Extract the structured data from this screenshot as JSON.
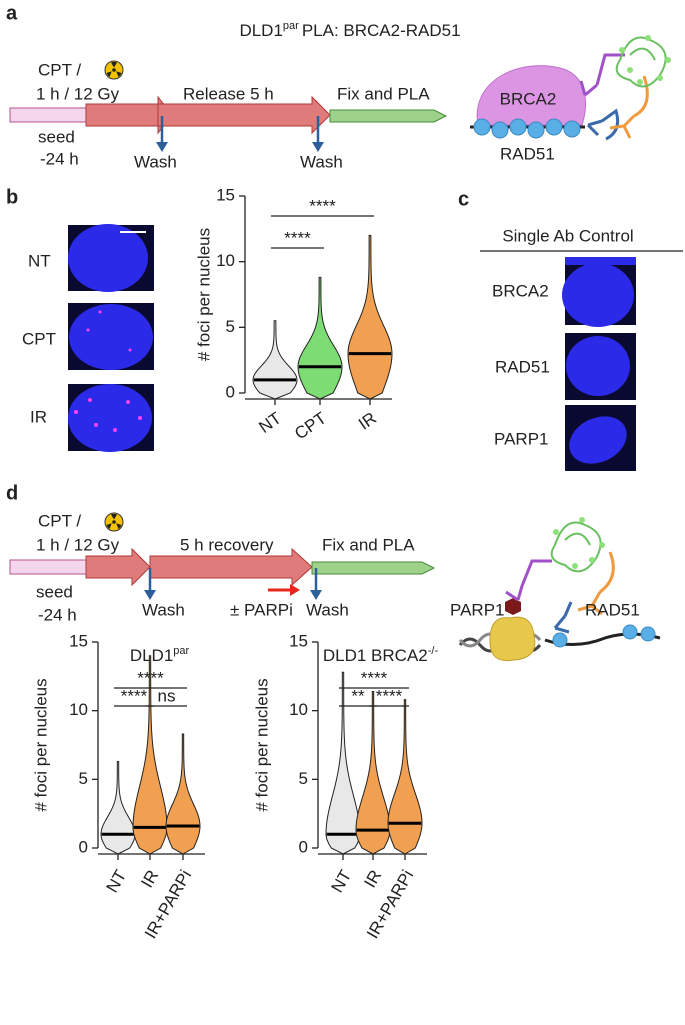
{
  "panel_labels": [
    "a",
    "b",
    "c",
    "d"
  ],
  "panel_a": {
    "title": {
      "text": "DLD1",
      "sup": "par",
      "rest": "PLA: BRCA2-RAD51"
    },
    "treatment": "CPT /",
    "dose": "1 h / 12 Gy",
    "release": "Release 5 h",
    "fix": "Fix and PLA",
    "seed": "seed",
    "seed_time": "-24 h",
    "wash": [
      "Wash",
      "Wash"
    ],
    "schematic": [
      "BRCA2",
      "RAD51"
    ]
  },
  "panel_b": {
    "images": [
      "NT",
      "CPT",
      "IR"
    ]
  },
  "panel_c": {
    "title": "Single Ab Control",
    "images": [
      "BRCA2",
      "RAD51",
      "PARP1"
    ]
  },
  "panel_d": {
    "treatment": "CPT /",
    "dose": "1 h / 12 Gy",
    "recovery": "5 h recovery",
    "fix": "Fix and PLA",
    "seed": "seed",
    "seed_time": "-24 h",
    "wash": [
      "Wash",
      "Wash"
    ],
    "inhibitor": "± PARPi",
    "schematic": [
      "PARP1",
      "RAD51"
    ]
  },
  "chart_data": [
    {
      "type": "violin",
      "ylabel": "# foci per nucleus",
      "categories": [
        "NT",
        "CPT",
        "IR"
      ],
      "values": [
        1,
        2,
        3
      ],
      "maxima": [
        5.5,
        8.8,
        12
      ],
      "colors": [
        "#e8e8e8",
        "#7ddc74",
        "#f0a050"
      ],
      "ylim": [
        0,
        15
      ],
      "yticks": [
        0,
        5,
        10,
        15
      ],
      "comparisons": [
        {
          "label": "****",
          "pair": [
            0,
            2
          ]
        },
        {
          "label": "****",
          "pair": [
            0,
            1
          ]
        }
      ]
    },
    {
      "type": "violin",
      "title": {
        "text": "DLD1",
        "sup": "par"
      },
      "ylabel": "# foci per nucleus",
      "categories": [
        "NT",
        "IR",
        "IR+PARPi"
      ],
      "values": [
        1,
        1.5,
        1.6
      ],
      "maxima": [
        6.3,
        14,
        8.3
      ],
      "colors": [
        "#e8e8e8",
        "#f0a050",
        "#f0a050"
      ],
      "ylim": [
        0,
        15
      ],
      "yticks": [
        0,
        5,
        10,
        15
      ],
      "comparisons": [
        {
          "label": "****",
          "pair": [
            0,
            2
          ]
        },
        {
          "label": "****",
          "pair": [
            0,
            1
          ]
        },
        {
          "label": "ns",
          "pair": [
            1,
            2
          ]
        }
      ]
    },
    {
      "type": "violin",
      "title": {
        "text": "DLD1 BRCA2",
        "sup": "-/-"
      },
      "ylabel": "# foci per nucleus",
      "categories": [
        "NT",
        "IR",
        "IR+PARPi"
      ],
      "values": [
        1,
        1.3,
        1.8
      ],
      "maxima": [
        12.8,
        11.4,
        10.8
      ],
      "colors": [
        "#e8e8e8",
        "#f0a050",
        "#f0a050"
      ],
      "ylim": [
        0,
        15
      ],
      "yticks": [
        0,
        5,
        10,
        15
      ],
      "comparisons": [
        {
          "label": "****",
          "pair": [
            0,
            2
          ]
        },
        {
          "label": "**",
          "pair": [
            0,
            1
          ]
        },
        {
          "label": "****",
          "pair": [
            1,
            2
          ]
        }
      ]
    }
  ]
}
